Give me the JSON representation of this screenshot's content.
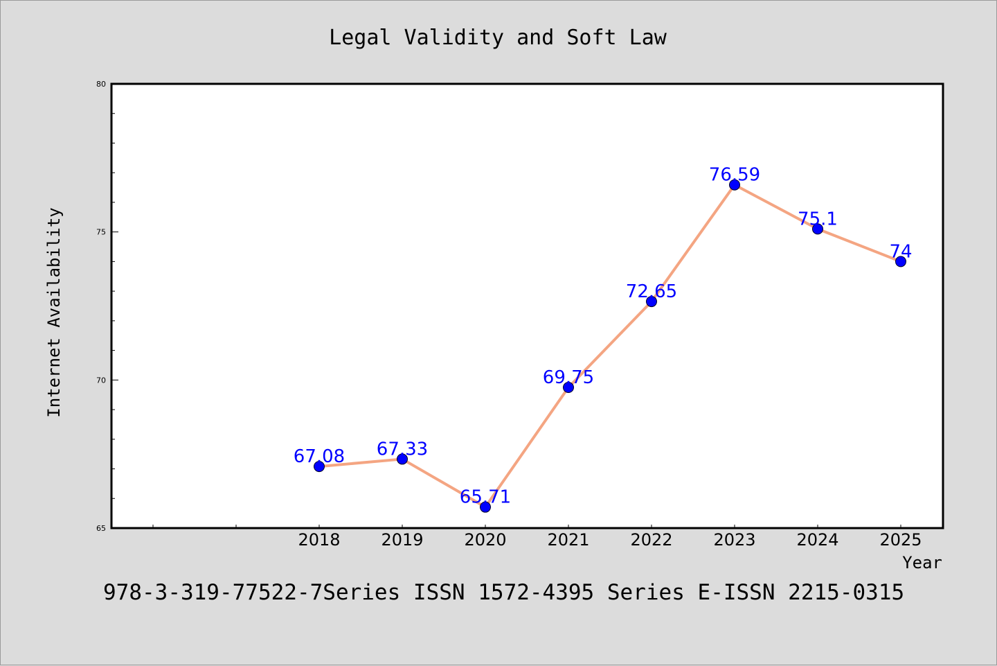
{
  "chart_data": {
    "type": "line",
    "title": "Legal Validity and Soft Law",
    "xlabel": "Year",
    "ylabel": "Internet Availability",
    "categories": [
      "2018",
      "2019",
      "2020",
      "2021",
      "2022",
      "2023",
      "2024",
      "2025"
    ],
    "series": [
      {
        "values": [
          67.08,
          67.33,
          65.71,
          69.75,
          72.65,
          76.59,
          75.1,
          74
        ],
        "labels": [
          "67.08",
          "67.33",
          "65.71",
          "69.75",
          "72.65",
          "76.59",
          "75.1",
          "74"
        ]
      }
    ],
    "ylim": [
      65,
      80
    ],
    "yticks": [
      "65",
      "70",
      "75",
      "80"
    ],
    "grid": false,
    "line_color": "#f4a582",
    "marker_color": "#0000ff",
    "label_color": "#0000ff",
    "plot_background": "#ffffff",
    "figure_background": "#dcdcdc"
  },
  "footer": {
    "text": "978-3-319-77522-7Series ISSN 1572-4395 Series E-ISSN 2215-0315"
  }
}
